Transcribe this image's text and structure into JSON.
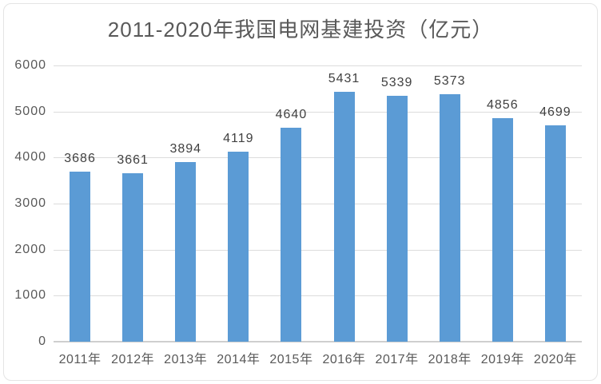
{
  "chart_data": {
    "type": "bar",
    "title": "2011-2020年我国电网基建投资（亿元）",
    "categories": [
      "2011年",
      "2012年",
      "2013年",
      "2014年",
      "2015年",
      "2016年",
      "2017年",
      "2018年",
      "2019年",
      "2020年"
    ],
    "values": [
      3686,
      3661,
      3894,
      4119,
      4640,
      5431,
      5339,
      5373,
      4856,
      4699
    ],
    "xlabel": "",
    "ylabel": "",
    "ylim": [
      0,
      6000
    ],
    "yticks": [
      0,
      1000,
      2000,
      3000,
      4000,
      5000,
      6000
    ],
    "grid": true,
    "legend": "none",
    "bar_color": "#5b9bd5"
  },
  "colors": {
    "bar": "#5b9bd5",
    "title_text": "#595959",
    "axis_text": "#595959",
    "value_label_text": "#404040",
    "gridline": "#dcdcdc",
    "axis_line": "#cfcfcf",
    "background": "#ffffff",
    "frame_border": "#e4e4e4"
  }
}
